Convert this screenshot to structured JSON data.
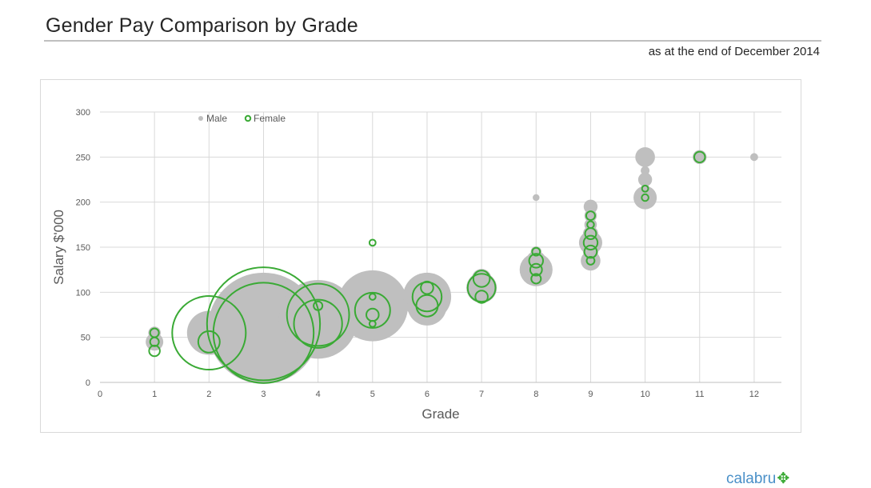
{
  "header": {
    "title": "Gender Pay Comparison by Grade",
    "subtitle": "as at the end of December 2014"
  },
  "logo": {
    "text": "calabru",
    "mark_icon": "running-figure-icon"
  },
  "colors": {
    "male": "#bfbfbf",
    "female": "#3aaa35",
    "grid": "#d9d9d9",
    "axis_text": "#595959"
  },
  "chart_data": {
    "type": "bubble",
    "xlabel": "Grade",
    "ylabel": "Salary $'000",
    "xlim": [
      0,
      12.5
    ],
    "ylim": [
      0,
      300
    ],
    "x_ticks": [
      0,
      1,
      2,
      3,
      4,
      5,
      6,
      7,
      8,
      9,
      10,
      11,
      12
    ],
    "y_ticks": [
      0,
      50,
      100,
      150,
      200,
      250,
      300
    ],
    "grid": true,
    "legend_position": "top-left",
    "series": [
      {
        "name": "Male",
        "style": "filled",
        "points": [
          {
            "x": 1,
            "y": 55,
            "size": 2
          },
          {
            "x": 1,
            "y": 45,
            "size": 4
          },
          {
            "x": 2,
            "y": 55,
            "size": 25
          },
          {
            "x": 2,
            "y": 45,
            "size": 6
          },
          {
            "x": 3,
            "y": 60,
            "size": 160
          },
          {
            "x": 4,
            "y": 70,
            "size": 80
          },
          {
            "x": 5,
            "y": 85,
            "size": 65
          },
          {
            "x": 6,
            "y": 95,
            "size": 30
          },
          {
            "x": 6,
            "y": 85,
            "size": 20
          },
          {
            "x": 7,
            "y": 105,
            "size": 12
          },
          {
            "x": 7,
            "y": 115,
            "size": 5
          },
          {
            "x": 8,
            "y": 205,
            "size": 0.6
          },
          {
            "x": 8,
            "y": 125,
            "size": 14
          },
          {
            "x": 8,
            "y": 135,
            "size": 5
          },
          {
            "x": 8,
            "y": 145,
            "size": 1.5
          },
          {
            "x": 8,
            "y": 115,
            "size": 2
          },
          {
            "x": 9,
            "y": 195,
            "size": 2.5
          },
          {
            "x": 9,
            "y": 185,
            "size": 2
          },
          {
            "x": 9,
            "y": 175,
            "size": 2
          },
          {
            "x": 9,
            "y": 165,
            "size": 3
          },
          {
            "x": 9,
            "y": 155,
            "size": 7
          },
          {
            "x": 9,
            "y": 145,
            "size": 3
          },
          {
            "x": 9,
            "y": 135,
            "size": 5
          },
          {
            "x": 10,
            "y": 250,
            "size": 5
          },
          {
            "x": 10,
            "y": 235,
            "size": 1
          },
          {
            "x": 10,
            "y": 225,
            "size": 2.5
          },
          {
            "x": 10,
            "y": 215,
            "size": 1
          },
          {
            "x": 10,
            "y": 205,
            "size": 7
          },
          {
            "x": 11,
            "y": 250,
            "size": 2.5
          },
          {
            "x": 12,
            "y": 250,
            "size": 0.8
          }
        ]
      },
      {
        "name": "Female",
        "style": "hollow",
        "points": [
          {
            "x": 1,
            "y": 55,
            "size": 1
          },
          {
            "x": 1,
            "y": 45,
            "size": 1
          },
          {
            "x": 1,
            "y": 35,
            "size": 1.5
          },
          {
            "x": 2,
            "y": 55,
            "size": 70
          },
          {
            "x": 2,
            "y": 45,
            "size": 6
          },
          {
            "x": 3,
            "y": 65,
            "size": 165
          },
          {
            "x": 3,
            "y": 55,
            "size": 130
          },
          {
            "x": 4,
            "y": 75,
            "size": 50
          },
          {
            "x": 4,
            "y": 65,
            "size": 30
          },
          {
            "x": 4,
            "y": 85,
            "size": 1
          },
          {
            "x": 5,
            "y": 155,
            "size": 0.5
          },
          {
            "x": 5,
            "y": 95,
            "size": 0.5
          },
          {
            "x": 5,
            "y": 80,
            "size": 16
          },
          {
            "x": 5,
            "y": 75,
            "size": 2
          },
          {
            "x": 5,
            "y": 65,
            "size": 0.5
          },
          {
            "x": 6,
            "y": 105,
            "size": 2
          },
          {
            "x": 6,
            "y": 95,
            "size": 11
          },
          {
            "x": 6,
            "y": 85,
            "size": 6
          },
          {
            "x": 7,
            "y": 115,
            "size": 3.5
          },
          {
            "x": 7,
            "y": 105,
            "size": 10
          },
          {
            "x": 7,
            "y": 95,
            "size": 2
          },
          {
            "x": 8,
            "y": 145,
            "size": 0.8
          },
          {
            "x": 8,
            "y": 135,
            "size": 2.5
          },
          {
            "x": 8,
            "y": 125,
            "size": 1.8
          },
          {
            "x": 8,
            "y": 115,
            "size": 1.2
          },
          {
            "x": 9,
            "y": 185,
            "size": 1
          },
          {
            "x": 9,
            "y": 175,
            "size": 0.6
          },
          {
            "x": 9,
            "y": 165,
            "size": 1.6
          },
          {
            "x": 9,
            "y": 155,
            "size": 2.5
          },
          {
            "x": 9,
            "y": 145,
            "size": 2
          },
          {
            "x": 9,
            "y": 135,
            "size": 0.8
          },
          {
            "x": 10,
            "y": 215,
            "size": 0.5
          },
          {
            "x": 10,
            "y": 205,
            "size": 0.6
          },
          {
            "x": 11,
            "y": 250,
            "size": 1.5
          }
        ]
      }
    ]
  }
}
